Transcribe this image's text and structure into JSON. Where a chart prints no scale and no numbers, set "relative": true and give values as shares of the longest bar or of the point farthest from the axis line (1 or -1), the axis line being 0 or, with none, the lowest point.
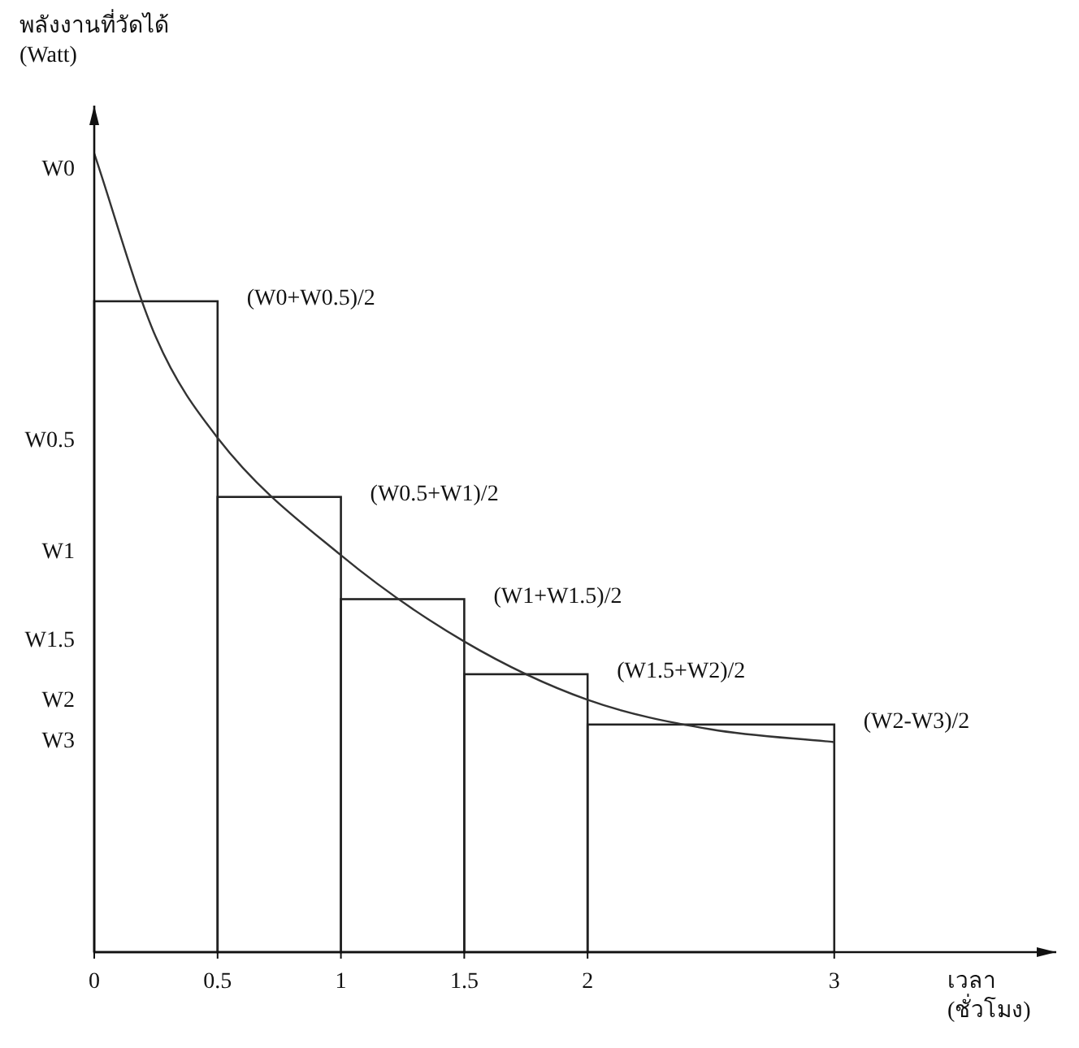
{
  "chart_data": {
    "type": "histogram",
    "relative": true,
    "ylabel": "พลังงานที่วัดได้\n(Watt)",
    "xlabel": "เวลา\n(ชั่วโมง)",
    "bins": [
      0,
      0.5,
      1,
      1.5,
      2,
      3
    ],
    "values": [
      0.815,
      0.57,
      0.442,
      0.348,
      0.285
    ],
    "color": "#222222",
    "series": [
      {
        "type": "line",
        "color": "#333333",
        "x": [
          0,
          0.25,
          0.5,
          1,
          1.5,
          2,
          2.5,
          3
        ],
        "values": [
          1.0,
          0.77,
          0.644,
          0.497,
          0.389,
          0.316,
          0.279,
          0.263
        ]
      }
    ],
    "xlim": [
      0,
      3.9
    ],
    "xticks": [
      0,
      0.5,
      1,
      1.5,
      2,
      3
    ],
    "annotations": [
      {
        "text": "W0",
        "x": 0,
        "y": 0.98
      },
      {
        "text": "W0.5",
        "x": 0,
        "y": 0.64
      },
      {
        "text": "W1",
        "x": 0,
        "y": 0.5
      },
      {
        "text": "W1.5",
        "x": 0,
        "y": 0.39
      },
      {
        "text": "W2",
        "x": 0,
        "y": 0.314
      },
      {
        "text": "W3",
        "x": 0,
        "y": 0.263
      },
      {
        "text": "(W0+W0.5)/2",
        "x": 0.5,
        "y": 0.815
      },
      {
        "text": "(W0.5+W1)/2",
        "x": 1,
        "y": 0.57
      },
      {
        "text": "(W1+W1.5)/2",
        "x": 1.5,
        "y": 0.442
      },
      {
        "text": "(W1.5+W2)/2",
        "x": 2,
        "y": 0.348
      },
      {
        "text": "(W2-W3)/2",
        "x": 3,
        "y": 0.285
      }
    ]
  }
}
